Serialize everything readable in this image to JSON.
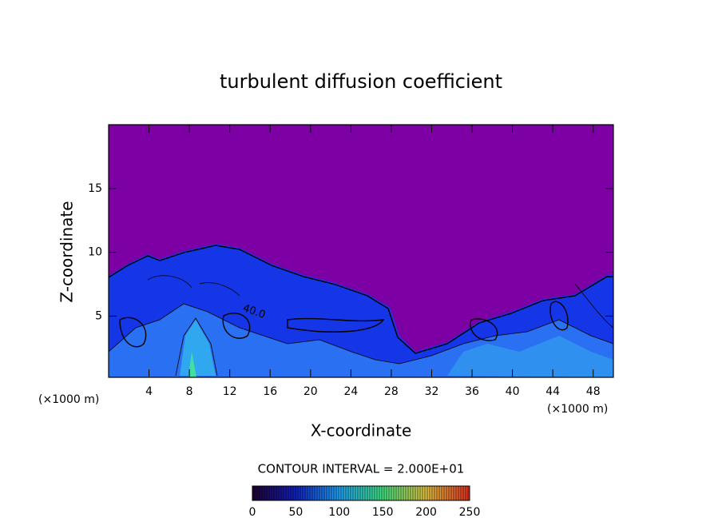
{
  "chart_data": {
    "type": "contour",
    "title": "turbulent diffusion coefficient",
    "x_label": "X-coordinate",
    "y_label": "Z-coordinate",
    "y_unit_label": "(×1000 m)",
    "x_unit_label": "(×1000 m)",
    "xlim": [
      0,
      50
    ],
    "ylim": [
      0.2,
      20
    ],
    "xticks": [
      4,
      8,
      12,
      16,
      20,
      24,
      28,
      32,
      36,
      40,
      44,
      48
    ],
    "yticks": [
      5,
      10,
      15
    ],
    "contour_labels": [
      "40.0"
    ],
    "colorbar": {
      "title": "CONTOUR INTERVAL = 2.000E+01",
      "clim": [
        0,
        250
      ],
      "ticks": [
        0,
        50,
        100,
        150,
        200,
        250
      ],
      "colors": [
        "#200030",
        "#1020c0",
        "#20a0f0",
        "#40e080",
        "#e0c040",
        "#e03020"
      ]
    }
  }
}
